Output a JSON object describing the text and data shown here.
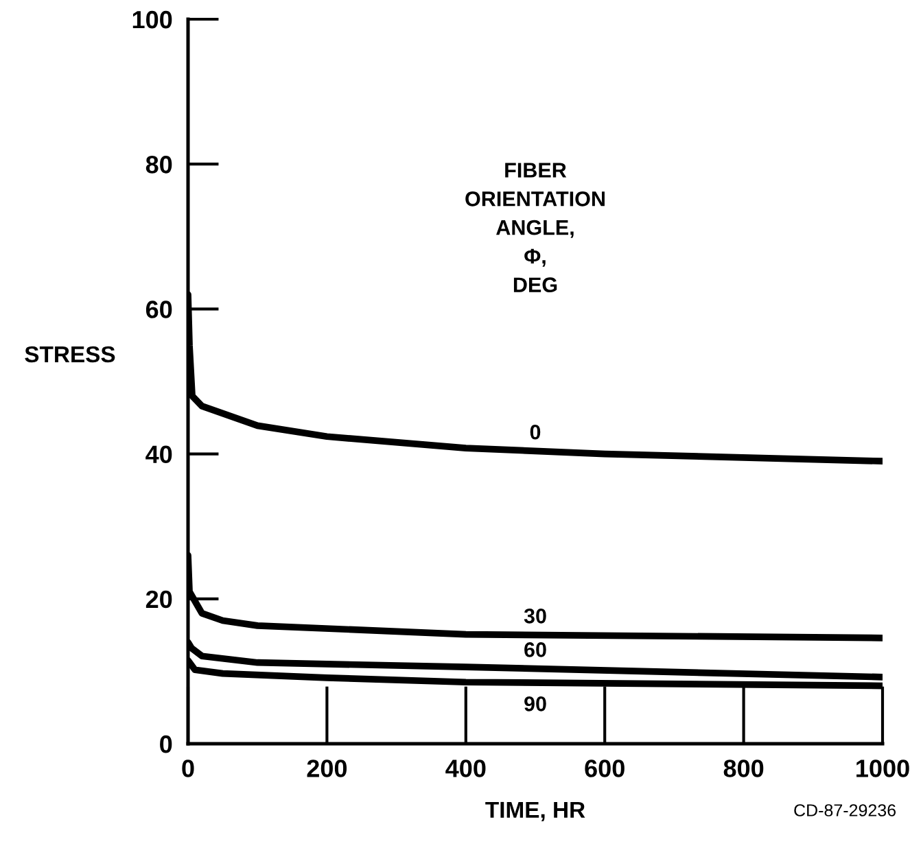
{
  "chart_data": {
    "type": "line",
    "xlabel": "TIME, HR",
    "ylabel": "STRESS",
    "xlim": [
      0,
      1000
    ],
    "ylim": [
      0,
      100
    ],
    "xticks": [
      0,
      200,
      400,
      600,
      800,
      1000
    ],
    "yticks": [
      0,
      20,
      40,
      60,
      80,
      100
    ],
    "grid": false,
    "legend": false,
    "marker": "none",
    "line_style": "solid",
    "series": [
      {
        "name": "0",
        "color": "#000000",
        "x": [
          0,
          2,
          6,
          20,
          100,
          200,
          400,
          600,
          1000
        ],
        "values": [
          62,
          55,
          48,
          46.6,
          43.9,
          42.4,
          40.8,
          40,
          39
        ]
      },
      {
        "name": "30",
        "color": "#000000",
        "x": [
          0,
          2,
          20,
          50,
          100,
          400,
          1000
        ],
        "values": [
          26,
          21,
          18,
          17,
          16.3,
          15.1,
          14.6
        ]
      },
      {
        "name": "60",
        "color": "#000000",
        "x": [
          0,
          5,
          20,
          100,
          400,
          1000
        ],
        "values": [
          14,
          13.2,
          12.1,
          11.2,
          10.6,
          9.2
        ]
      },
      {
        "name": "90",
        "color": "#000000",
        "x": [
          0,
          10,
          50,
          200,
          400,
          1000
        ],
        "values": [
          11.5,
          10.2,
          9.7,
          9.1,
          8.5,
          8
        ]
      }
    ],
    "annotations": [
      "FIBER\nORIENTATION\nANGLE,\nΦ,\nDEG",
      "CD-87-29236"
    ]
  }
}
